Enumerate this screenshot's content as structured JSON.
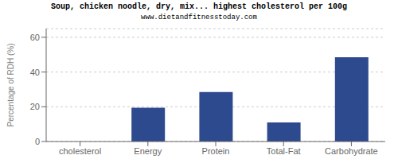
{
  "chart_data": {
    "type": "bar",
    "title": "Soup, chicken noodle, dry, mix... highest cholesterol per 100g",
    "subtitle": "www.dietandfitnesstoday.com",
    "categories": [
      "cholesterol",
      "Energy",
      "Protein",
      "Total-Fat",
      "Carbohydrate"
    ],
    "values": [
      0,
      19.5,
      28.5,
      11,
      48.5
    ],
    "color": "#2e4a8e",
    "ylabel": "Percentage of RDH (%)",
    "ylim": [
      0,
      65
    ],
    "yticks": [
      0,
      20,
      40,
      60
    ],
    "grid": true
  }
}
